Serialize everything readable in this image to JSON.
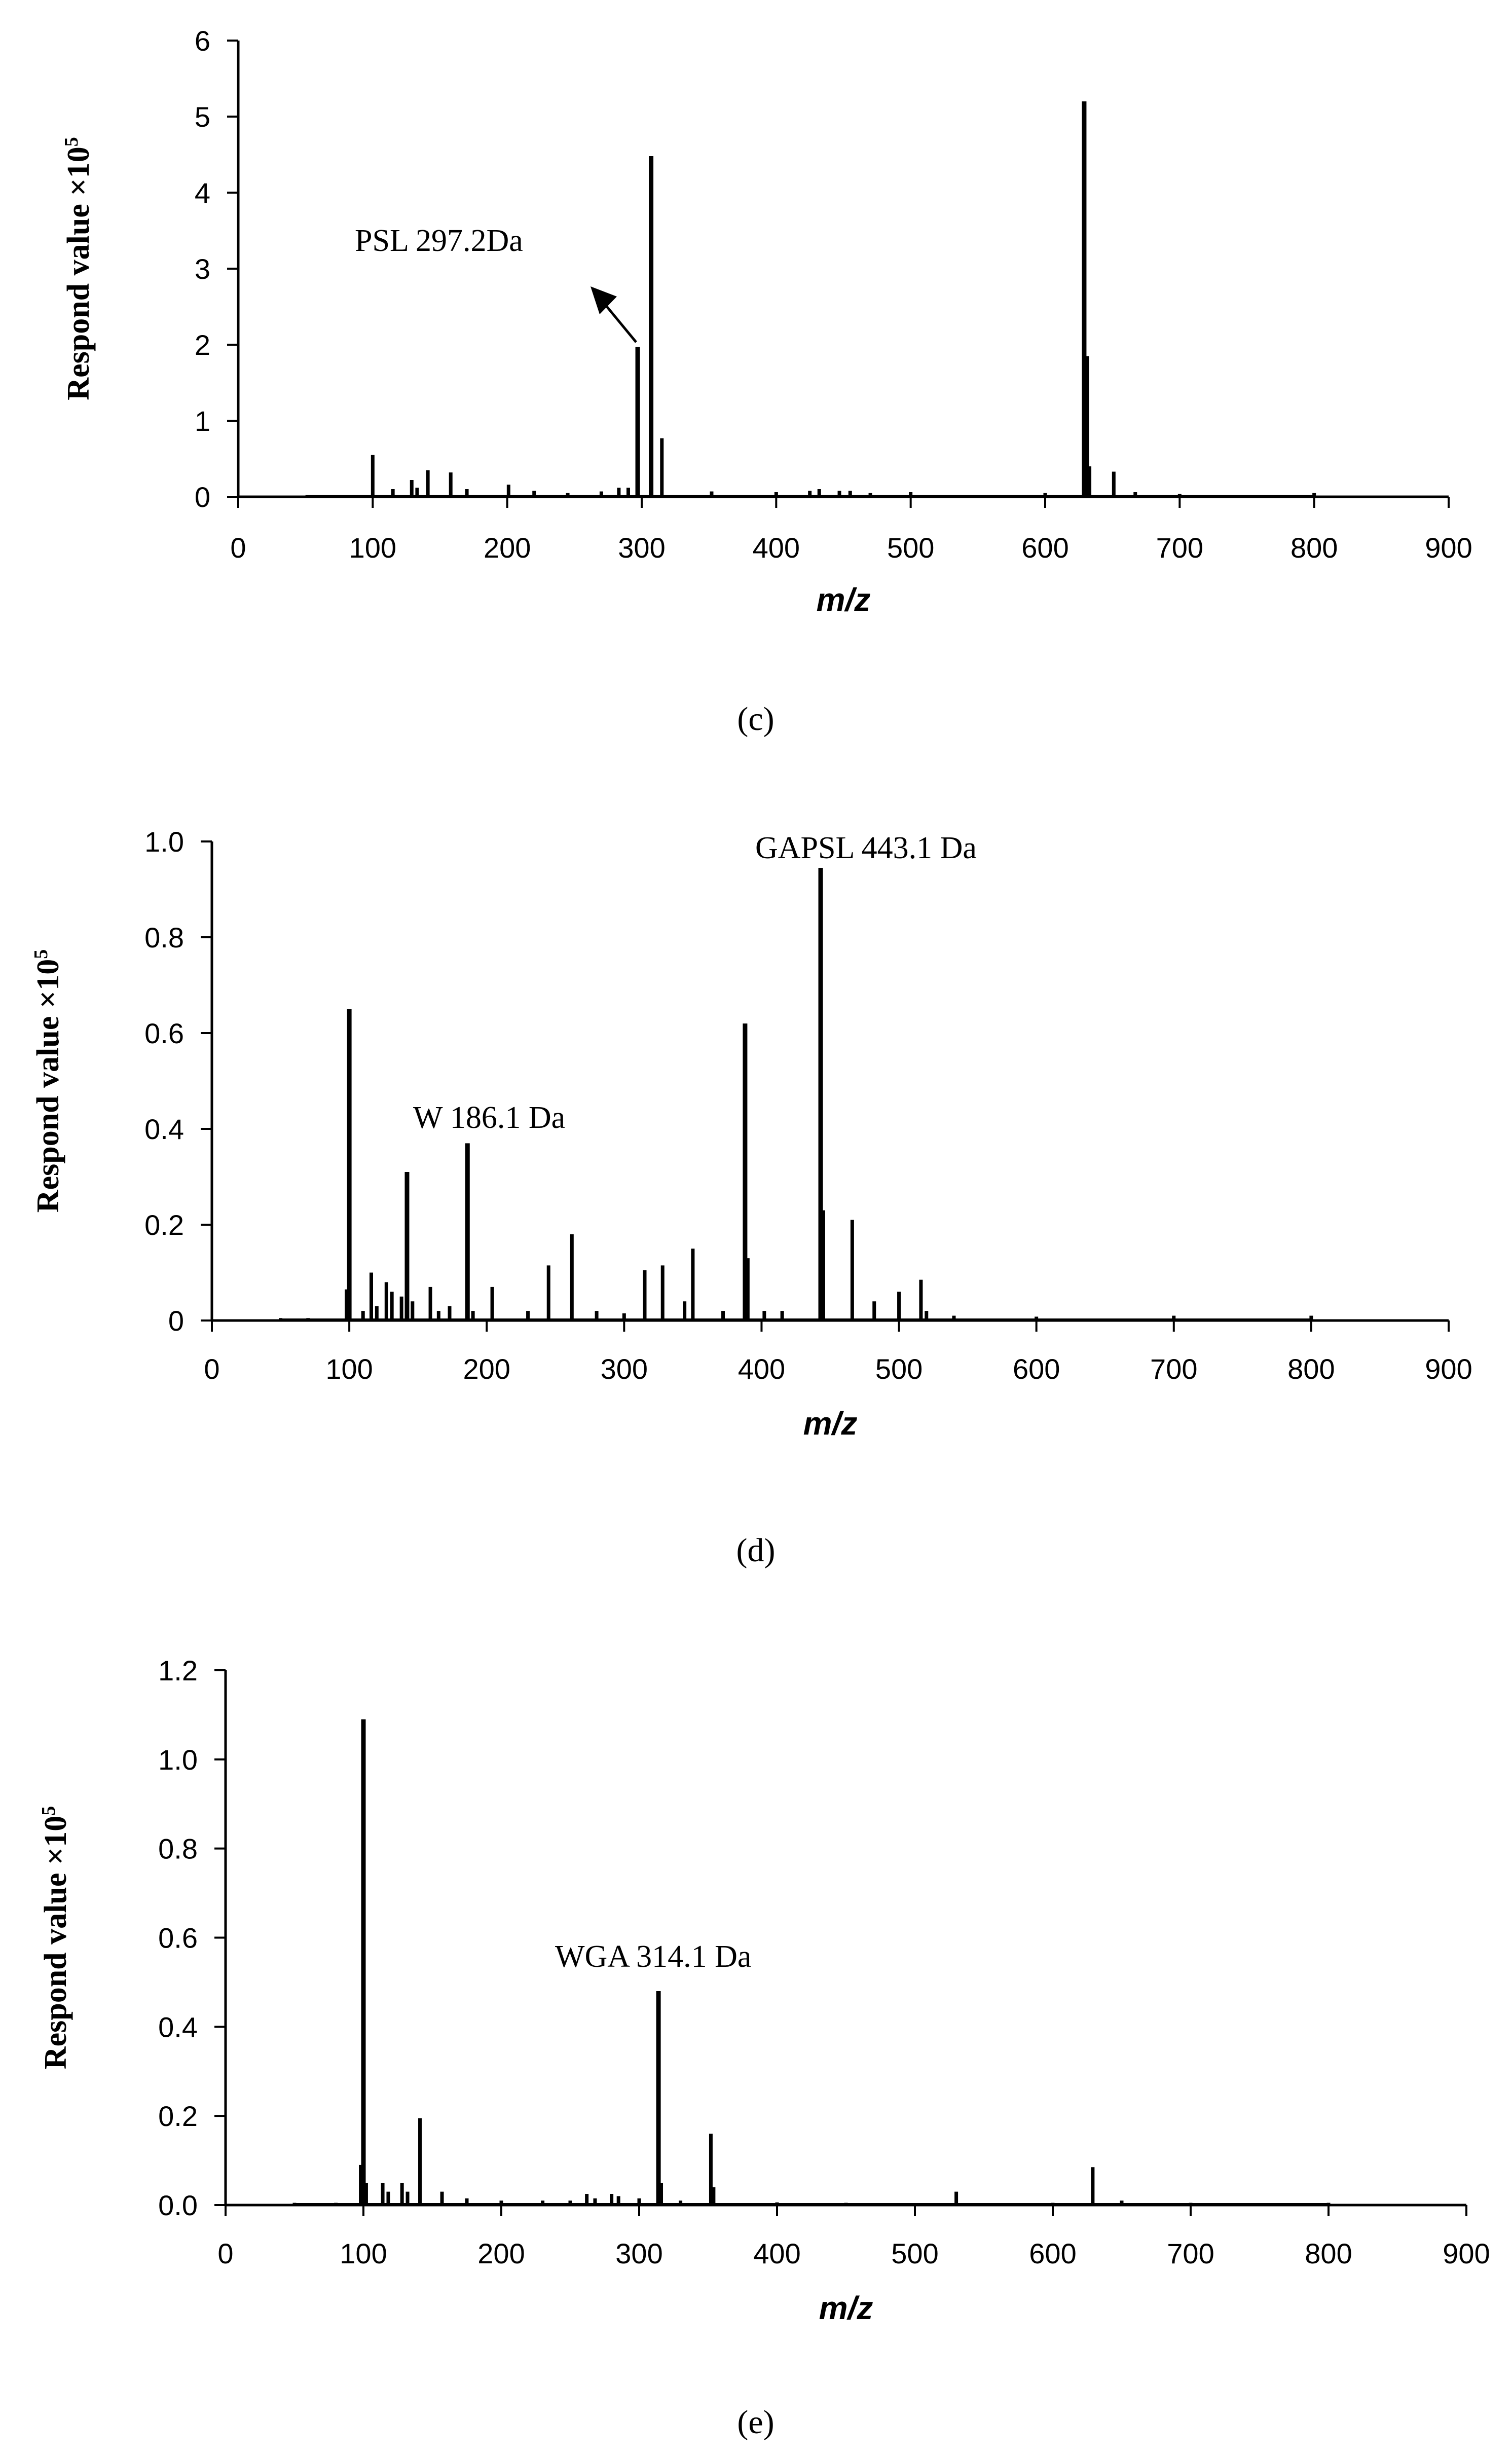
{
  "chart_data": [
    {
      "type": "bar",
      "panel_label": "(c)",
      "ylabel": "Respond value ×10",
      "ylabel_exponent": "5",
      "xlabel": "m/z",
      "xlim": [
        0,
        900
      ],
      "ylim": [
        0,
        6
      ],
      "xticks": [
        "0",
        "100",
        "200",
        "300",
        "400",
        "500",
        "600",
        "700",
        "800",
        "900"
      ],
      "yticks": [
        "0",
        "1",
        "2",
        "3",
        "4",
        "5",
        "6"
      ],
      "peaks": [
        {
          "x": 100,
          "y": 0.55
        },
        {
          "x": 115,
          "y": 0.1
        },
        {
          "x": 129,
          "y": 0.22
        },
        {
          "x": 133,
          "y": 0.12
        },
        {
          "x": 141,
          "y": 0.35
        },
        {
          "x": 158,
          "y": 0.32
        },
        {
          "x": 170,
          "y": 0.1
        },
        {
          "x": 201,
          "y": 0.16
        },
        {
          "x": 220,
          "y": 0.08
        },
        {
          "x": 245,
          "y": 0.05
        },
        {
          "x": 270,
          "y": 0.07
        },
        {
          "x": 283,
          "y": 0.12
        },
        {
          "x": 290,
          "y": 0.12
        },
        {
          "x": 297,
          "y": 1.97
        },
        {
          "x": 307,
          "y": 4.48
        },
        {
          "x": 315,
          "y": 0.77
        },
        {
          "x": 352,
          "y": 0.07
        },
        {
          "x": 400,
          "y": 0.06
        },
        {
          "x": 425,
          "y": 0.08
        },
        {
          "x": 432,
          "y": 0.1
        },
        {
          "x": 447,
          "y": 0.08
        },
        {
          "x": 455,
          "y": 0.08
        },
        {
          "x": 470,
          "y": 0.05
        },
        {
          "x": 500,
          "y": 0.06
        },
        {
          "x": 600,
          "y": 0.05
        },
        {
          "x": 629,
          "y": 5.2
        },
        {
          "x": 631,
          "y": 1.85
        },
        {
          "x": 633,
          "y": 0.4
        },
        {
          "x": 651,
          "y": 0.33
        },
        {
          "x": 667,
          "y": 0.06
        },
        {
          "x": 700,
          "y": 0.04
        },
        {
          "x": 800,
          "y": 0.05
        }
      ],
      "annotations": [
        {
          "text": "PSL 297.2Da",
          "x": 297,
          "y": 1.97,
          "arrow": true
        }
      ]
    },
    {
      "type": "bar",
      "panel_label": "(d)",
      "ylabel": "Respond value ×10",
      "ylabel_exponent": "5",
      "xlabel": "m/z",
      "xlim": [
        0,
        900
      ],
      "ylim": [
        0,
        1.0
      ],
      "xticks": [
        "0",
        "100",
        "200",
        "300",
        "400",
        "500",
        "600",
        "700",
        "800",
        "900"
      ],
      "yticks": [
        "0",
        "0.2",
        "0.4",
        "0.6",
        "0.8",
        "1.0"
      ],
      "peaks": [
        {
          "x": 50,
          "y": 0.005
        },
        {
          "x": 70,
          "y": 0.005
        },
        {
          "x": 98,
          "y": 0.065
        },
        {
          "x": 100,
          "y": 0.65
        },
        {
          "x": 110,
          "y": 0.02
        },
        {
          "x": 116,
          "y": 0.1
        },
        {
          "x": 120,
          "y": 0.03
        },
        {
          "x": 127,
          "y": 0.08
        },
        {
          "x": 131,
          "y": 0.06
        },
        {
          "x": 138,
          "y": 0.05
        },
        {
          "x": 142,
          "y": 0.31
        },
        {
          "x": 146,
          "y": 0.04
        },
        {
          "x": 159,
          "y": 0.07
        },
        {
          "x": 165,
          "y": 0.02
        },
        {
          "x": 173,
          "y": 0.03
        },
        {
          "x": 186,
          "y": 0.37
        },
        {
          "x": 190,
          "y": 0.02
        },
        {
          "x": 204,
          "y": 0.07
        },
        {
          "x": 230,
          "y": 0.02
        },
        {
          "x": 245,
          "y": 0.115
        },
        {
          "x": 262,
          "y": 0.18
        },
        {
          "x": 280,
          "y": 0.02
        },
        {
          "x": 300,
          "y": 0.015
        },
        {
          "x": 315,
          "y": 0.105
        },
        {
          "x": 328,
          "y": 0.115
        },
        {
          "x": 344,
          "y": 0.04
        },
        {
          "x": 350,
          "y": 0.15
        },
        {
          "x": 372,
          "y": 0.02
        },
        {
          "x": 388,
          "y": 0.62
        },
        {
          "x": 390,
          "y": 0.13
        },
        {
          "x": 402,
          "y": 0.02
        },
        {
          "x": 415,
          "y": 0.02
        },
        {
          "x": 443,
          "y": 0.945
        },
        {
          "x": 445,
          "y": 0.23
        },
        {
          "x": 466,
          "y": 0.21
        },
        {
          "x": 482,
          "y": 0.04
        },
        {
          "x": 500,
          "y": 0.06
        },
        {
          "x": 516,
          "y": 0.085
        },
        {
          "x": 520,
          "y": 0.02
        },
        {
          "x": 540,
          "y": 0.01
        },
        {
          "x": 600,
          "y": 0.008
        },
        {
          "x": 700,
          "y": 0.01
        },
        {
          "x": 800,
          "y": 0.01
        }
      ],
      "annotations": [
        {
          "text": "W 186.1 Da",
          "x": 186,
          "y": 0.37,
          "arrow": false
        },
        {
          "text": "GAPSL 443.1 Da",
          "x": 443,
          "y": 0.945,
          "arrow": false
        }
      ]
    },
    {
      "type": "bar",
      "panel_label": "(e)",
      "ylabel": "Respond value ×10",
      "ylabel_exponent": "5",
      "xlabel": "m/z",
      "xlim": [
        0,
        900
      ],
      "ylim": [
        0,
        1.2
      ],
      "xticks": [
        "0",
        "100",
        "200",
        "300",
        "400",
        "500",
        "600",
        "700",
        "800",
        "900"
      ],
      "yticks": [
        "0.0",
        "0.2",
        "0.4",
        "0.6",
        "0.8",
        "1.0",
        "1.2"
      ],
      "peaks": [
        {
          "x": 50,
          "y": 0.005
        },
        {
          "x": 80,
          "y": 0.005
        },
        {
          "x": 98,
          "y": 0.09
        },
        {
          "x": 100,
          "y": 1.09
        },
        {
          "x": 102,
          "y": 0.05
        },
        {
          "x": 114,
          "y": 0.05
        },
        {
          "x": 118,
          "y": 0.03
        },
        {
          "x": 128,
          "y": 0.05
        },
        {
          "x": 132,
          "y": 0.03
        },
        {
          "x": 141,
          "y": 0.195
        },
        {
          "x": 157,
          "y": 0.03
        },
        {
          "x": 175,
          "y": 0.015
        },
        {
          "x": 200,
          "y": 0.01
        },
        {
          "x": 230,
          "y": 0.01
        },
        {
          "x": 250,
          "y": 0.01
        },
        {
          "x": 262,
          "y": 0.025
        },
        {
          "x": 268,
          "y": 0.015
        },
        {
          "x": 280,
          "y": 0.025
        },
        {
          "x": 285,
          "y": 0.02
        },
        {
          "x": 300,
          "y": 0.015
        },
        {
          "x": 314,
          "y": 0.48
        },
        {
          "x": 316,
          "y": 0.05
        },
        {
          "x": 330,
          "y": 0.01
        },
        {
          "x": 352,
          "y": 0.16
        },
        {
          "x": 354,
          "y": 0.04
        },
        {
          "x": 400,
          "y": 0.006
        },
        {
          "x": 450,
          "y": 0.005
        },
        {
          "x": 530,
          "y": 0.03
        },
        {
          "x": 600,
          "y": 0.005
        },
        {
          "x": 629,
          "y": 0.085
        },
        {
          "x": 650,
          "y": 0.01
        },
        {
          "x": 700,
          "y": 0.005
        },
        {
          "x": 800,
          "y": 0.005
        }
      ],
      "annotations": [
        {
          "text": "WGA 314.1 Da",
          "x": 314,
          "y": 0.48,
          "arrow": false
        }
      ]
    }
  ]
}
